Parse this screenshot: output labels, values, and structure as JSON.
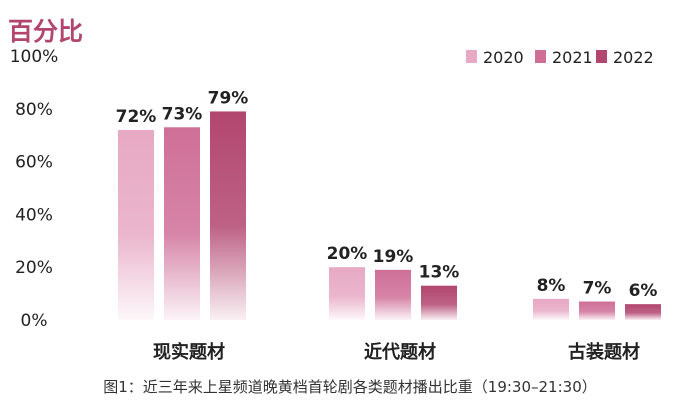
{
  "chart_data": {
    "type": "bar",
    "ylabel": "百分比",
    "ylim": [
      0,
      100
    ],
    "yticks": [
      "0%",
      "20%",
      "40%",
      "60%",
      "80%",
      "100%"
    ],
    "categories": [
      "现实题材",
      "近代题材",
      "古装题材"
    ],
    "series": [
      {
        "name": "2020",
        "values": [
          72,
          20,
          8
        ],
        "labels": [
          "72%",
          "20%",
          "8%"
        ],
        "color": "#e7a9c4"
      },
      {
        "name": "2021",
        "values": [
          73,
          19,
          7
        ],
        "labels": [
          "73%",
          "19%",
          "7%"
        ],
        "color": "#cf6f98"
      },
      {
        "name": "2022",
        "values": [
          79,
          13,
          6
        ],
        "labels": [
          "79%",
          "13%",
          "6%"
        ],
        "color": "#b2466f"
      }
    ],
    "legend_position": "top-right",
    "grid": false,
    "caption": "图1：近三年来上星频道晚黄档首轮剧各类题材播出比重（19:30–21:30）"
  }
}
